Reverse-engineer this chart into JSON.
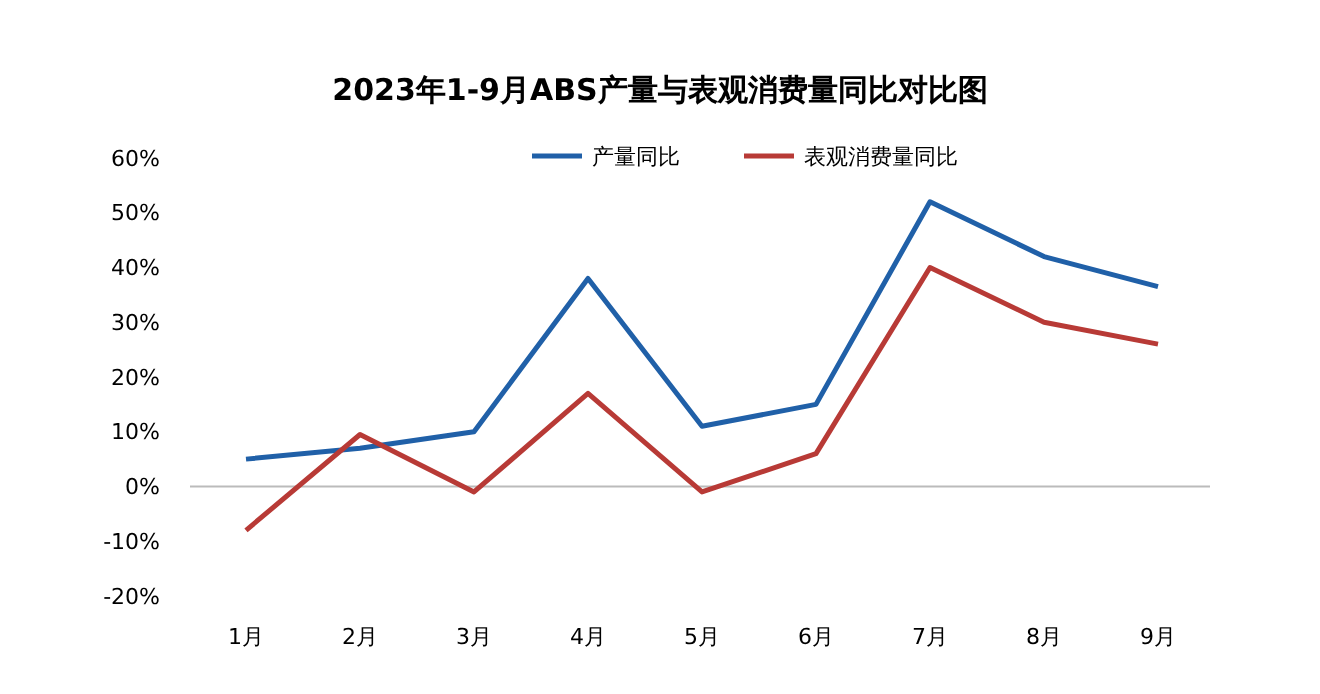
{
  "chart_data": {
    "type": "line",
    "title": "2023年1-9月ABS产量与表观消费量同比对比图",
    "categories": [
      "1月",
      "2月",
      "3月",
      "4月",
      "5月",
      "6月",
      "7月",
      "8月",
      "9月"
    ],
    "series": [
      {
        "name": "产量同比",
        "color": "#2060a8",
        "values": [
          5,
          7,
          10,
          38,
          11,
          15,
          52,
          42,
          36.5
        ]
      },
      {
        "name": "表观消费量同比",
        "color": "#b83a36",
        "values": [
          -8,
          9.5,
          -1,
          17,
          -1,
          6,
          40,
          30,
          26
        ]
      }
    ],
    "ylim": [
      -20,
      60
    ],
    "yticks": [
      {
        "value": -20,
        "label": "-20%"
      },
      {
        "value": -10,
        "label": "-10%"
      },
      {
        "value": 0,
        "label": "0%"
      },
      {
        "value": 10,
        "label": "10%"
      },
      {
        "value": 20,
        "label": "20%"
      },
      {
        "value": 30,
        "label": "30%"
      },
      {
        "value": 40,
        "label": "40%"
      },
      {
        "value": 50,
        "label": "50%"
      },
      {
        "value": 60,
        "label": "60%"
      }
    ],
    "ref_lines": [
      {
        "axis": "y",
        "value": 0,
        "color": "#bbbbbb"
      }
    ],
    "grid": false,
    "legend": "top",
    "marker": "none",
    "line_style": "solid"
  }
}
